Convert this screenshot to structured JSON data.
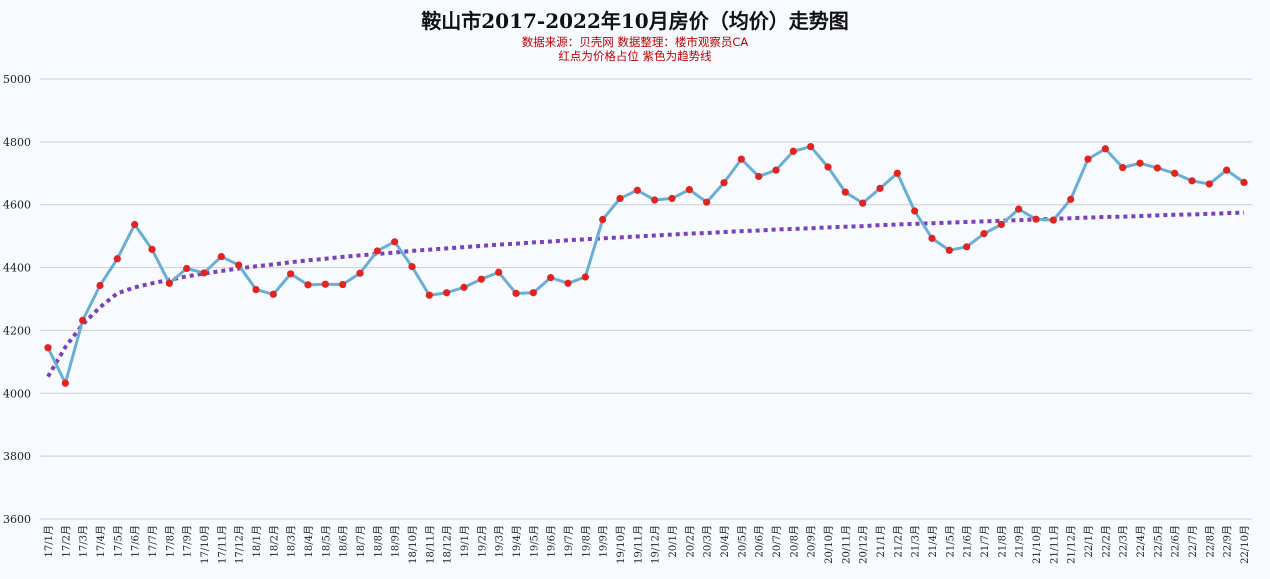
{
  "chart_data": {
    "type": "line",
    "title": "鞍山市2017-2022年10月房价（均价）走势图",
    "subtitle_lines": [
      "数据来源：贝壳网  数据整理：楼市观察员CA",
      "红点为价格占位  紫色为趋势线"
    ],
    "xlabel": "",
    "ylabel": "",
    "ylim": [
      3600,
      5000
    ],
    "yticks": [
      3600,
      3800,
      4000,
      4200,
      4400,
      4600,
      4800,
      5000
    ],
    "grid": true,
    "categories": [
      "17/1月",
      "17/2月",
      "17/3月",
      "17/4月",
      "17/5月",
      "17/6月",
      "17/7月",
      "17/8月",
      "17/9月",
      "17/10月",
      "17/11月",
      "17/12月",
      "18/1月",
      "18/2月",
      "18/3月",
      "18/4月",
      "18/5月",
      "18/6月",
      "18/7月",
      "18/8月",
      "18/9月",
      "18/10月",
      "18/11月",
      "18/12月",
      "19/1月",
      "19/2月",
      "19/3月",
      "19/4月",
      "19/5月",
      "19/6月",
      "19/7月",
      "19/8月",
      "19/9月",
      "19/10月",
      "19/11月",
      "19/12月",
      "20/1月",
      "20/2月",
      "20/3月",
      "20/4月",
      "20/5月",
      "20/6月",
      "20/7月",
      "20/8月",
      "20/9月",
      "20/10月",
      "20/11月",
      "20/12月",
      "21/1月",
      "21/2月",
      "21/3月",
      "21/4月",
      "21/5月",
      "21/6月",
      "21/7月",
      "21/8月",
      "21/9月",
      "21/10月",
      "21/11月",
      "21/12月",
      "22/1月",
      "22/2月",
      "22/3月",
      "22/4月",
      "22/5月",
      "22/6月",
      "22/7月",
      "22/8月",
      "22/9月",
      "22/10月"
    ],
    "series": [
      {
        "name": "均价",
        "color": "#6aaed6",
        "marker_color": "#e3231d",
        "values": [
          4145,
          4032,
          4232,
          4343,
          4428,
          4537,
          4458,
          4350,
          4397,
          4383,
          4435,
          4408,
          4330,
          4315,
          4380,
          4345,
          4347,
          4346,
          4382,
          4453,
          4482,
          4403,
          4312,
          4320,
          4337,
          4363,
          4385,
          4318,
          4320,
          4368,
          4350,
          4370,
          4553,
          4620,
          4646,
          4615,
          4620,
          4648,
          4608,
          4670,
          4745,
          4690,
          4710,
          4770,
          4785,
          4720,
          4640,
          4605,
          4652,
          4700,
          4580,
          4493,
          4455,
          4466,
          4508,
          4537,
          4586,
          4554,
          4551,
          4617,
          4745,
          4778,
          4718,
          4732,
          4717,
          4700,
          4676,
          4666,
          4710,
          4671
        ]
      },
      {
        "name": "趋势线",
        "color": "#7b3fbf",
        "dashed": true,
        "values": [
          4053,
          4147,
          4219,
          4274,
          4318,
          4337,
          4350,
          4361,
          4372,
          4381,
          4389,
          4397,
          4404,
          4410,
          4417,
          4423,
          4428,
          4434,
          4439,
          4443,
          4448,
          4453,
          4457,
          4461,
          4465,
          4469,
          4473,
          4476,
          4480,
          4483,
          4487,
          4490,
          4493,
          4496,
          4499,
          4502,
          4505,
          4508,
          4510,
          4513,
          4516,
          4518,
          4521,
          4523,
          4525,
          4528,
          4530,
          4532,
          4535,
          4537,
          4539,
          4541,
          4543,
          4545,
          4547,
          4549,
          4551,
          4553,
          4555,
          4557,
          4559,
          4561,
          4562,
          4564,
          4566,
          4568,
          4569,
          4571,
          4573,
          4575
        ]
      }
    ]
  },
  "colors": {
    "background": "#f7fbff",
    "grid": "#d0d0d0",
    "title": "#111111",
    "subtitle": "#c00000"
  }
}
